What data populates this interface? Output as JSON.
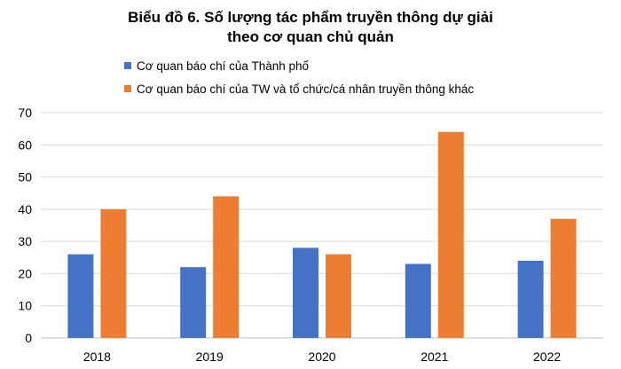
{
  "chart_data": {
    "type": "bar",
    "title": "Biểu đồ 6. Số lượng tác phẩm truyền thông dự giải",
    "subtitle": "theo cơ quan chủ quản",
    "categories": [
      "2018",
      "2019",
      "2020",
      "2021",
      "2022"
    ],
    "series": [
      {
        "name": "Cơ quan báo chí của Thành phố",
        "color": "#4472C4",
        "values": [
          26,
          22,
          28,
          23,
          24
        ]
      },
      {
        "name": "Cơ quan báo chí của TW và tổ chức/cá nhân truyền thông khác",
        "color": "#ED7D31",
        "values": [
          40,
          44,
          26,
          64,
          37
        ]
      }
    ],
    "ylim": [
      0,
      70
    ],
    "yticks": [
      0,
      10,
      20,
      30,
      40,
      50,
      60,
      70
    ],
    "grid": true,
    "legend_position": "top-left"
  }
}
